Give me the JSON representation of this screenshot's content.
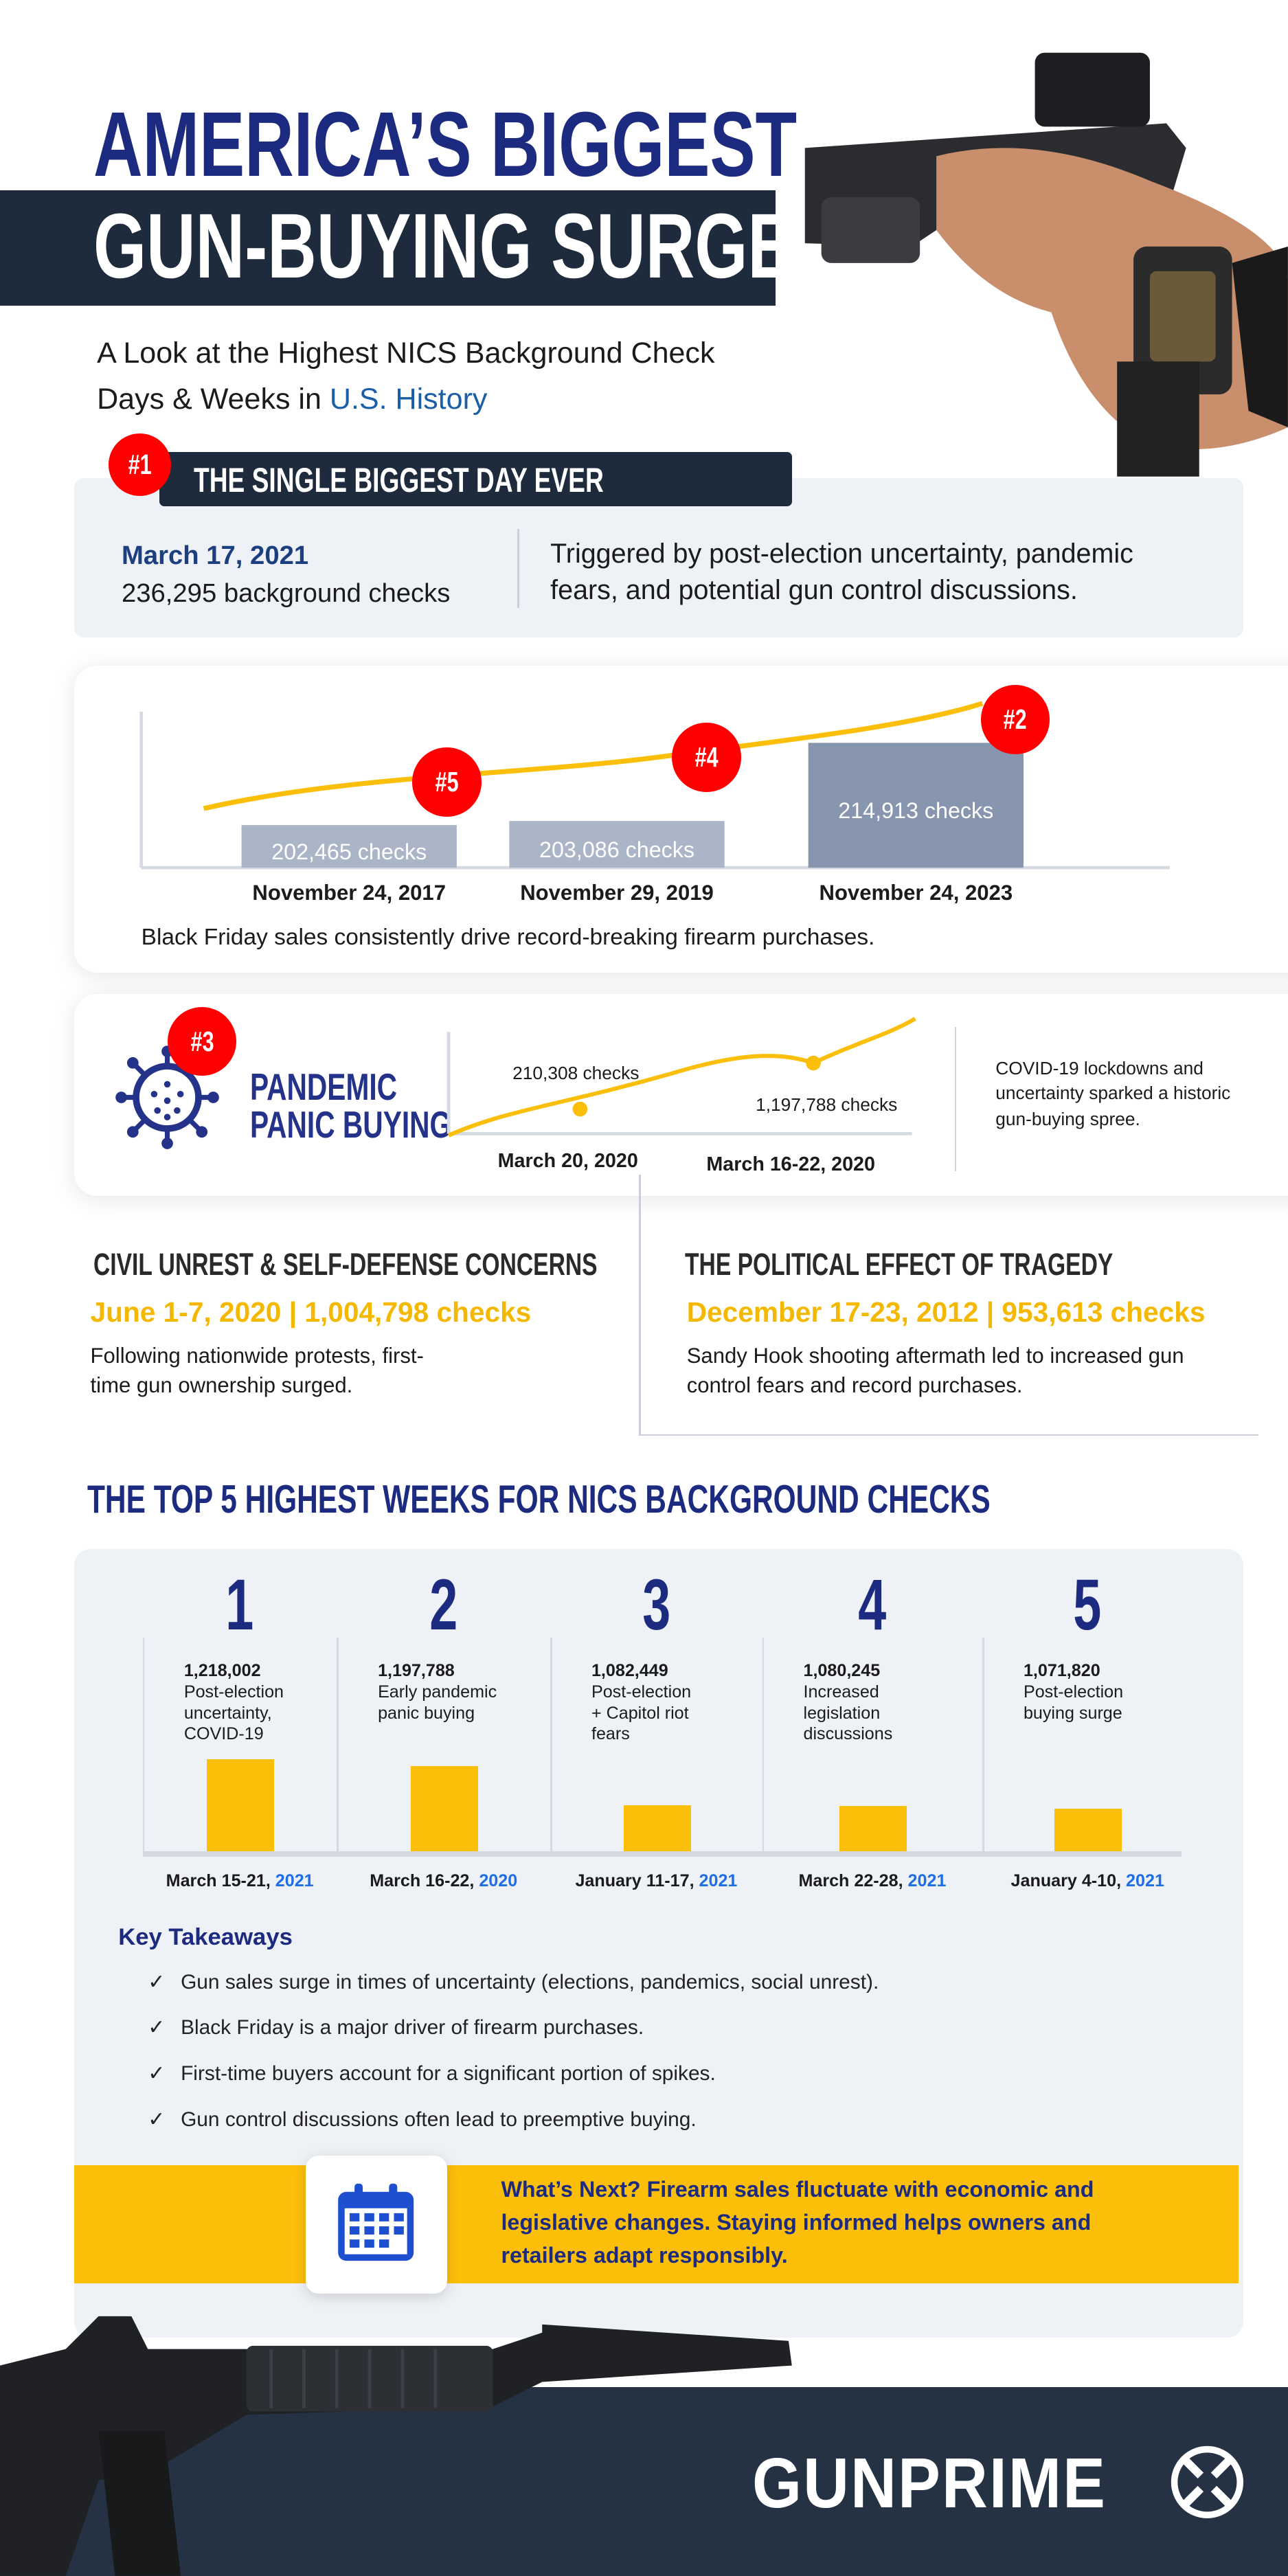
{
  "header": {
    "title_line1": "AMERICA’S BIGGEST",
    "title_line2": "GUN-BUYING SURGES",
    "subtitle_line1": "A Look at the Highest NICS Background Check",
    "subtitle_line2_prefix": "Days & Weeks in ",
    "subtitle_line2_highlight": "U.S. History"
  },
  "biggest_day": {
    "rank": "#1",
    "heading": "THE SINGLE BIGGEST DAY EVER",
    "date": "March 17, 2021",
    "checks": "236,295 background checks",
    "description_line1": "Triggered by post-election uncertainty, pandemic",
    "description_line2": "fears, and potential gun control discussions."
  },
  "black_friday": {
    "caption": "Black Friday sales consistently drive record-breaking firearm purchases."
  },
  "pandemic": {
    "rank": "#3",
    "title_line1": "PANDEMIC",
    "title_line2": "PANIC BUYING",
    "description_line1": "COVID-19 lockdowns and",
    "description_line2": "uncertainty sparked a historic",
    "description_line3": "gun-buying spree."
  },
  "civil_unrest": {
    "title": "CIVIL UNREST & SELF-DEFENSE CONCERNS",
    "highlight": "June 1-7, 2020 | 1,004,798 checks",
    "text_line1": "Following nationwide protests, first-",
    "text_line2": "time gun ownership surged."
  },
  "tragedy": {
    "title": "THE POLITICAL EFFECT OF TRAGEDY",
    "highlight": "December 17-23, 2012 | 953,613 checks",
    "text_line1": "Sandy Hook shooting aftermath led to increased gun",
    "text_line2": "control fears and record purchases."
  },
  "top5": {
    "title": "THE TOP 5 HIGHEST WEEKS FOR NICS BACKGROUND CHECKS"
  },
  "takeaways": {
    "title": "Key Takeaways",
    "check_icon": "✓",
    "items": [
      "Gun sales surge in times of uncertainty (elections, pandemics, social unrest).",
      "Black Friday is a major driver of firearm purchases.",
      "First-time buyers account for a significant portion of spikes.",
      "Gun control discussions often lead to preemptive buying."
    ]
  },
  "banner": {
    "icon": "calendar-icon",
    "line1": "What’s Next? Firearm sales fluctuate with economic and",
    "line2": "legislative changes. Staying informed helps owners and",
    "line3": "retailers adapt responsibly."
  },
  "footer": {
    "brand": "GUNPRIME"
  },
  "colors": {
    "navy": "#1c2b80",
    "dark_band": "#1e2b3d",
    "red_badge": "#ff0000",
    "yellow": "#fbbf0a",
    "blue_year": "#1e6ee8",
    "bar_light": "#aab5c8",
    "bar_dark": "#8796ae"
  },
  "chart_data": [
    {
      "type": "bar",
      "title": "",
      "categories": [
        "November 24, 2017",
        "November 29, 2019",
        "November 24, 2023"
      ],
      "values": [
        202465,
        203086,
        214913
      ],
      "data_labels": [
        "202,465  checks",
        "203,086 checks",
        "214,913 checks"
      ],
      "ranks": [
        "#5",
        "#4",
        "#2"
      ],
      "trend_line": true
    },
    {
      "type": "line",
      "categories": [
        "March 20, 2020",
        "March 16-22, 2020"
      ],
      "values": [
        210308,
        1197788
      ],
      "data_labels": [
        "210,308 checks",
        "1,197,788 checks"
      ]
    },
    {
      "type": "bar",
      "ranks": [
        "1",
        "2",
        "3",
        "4",
        "5"
      ],
      "values": [
        1218002,
        1197788,
        1082449,
        1080245,
        1071820
      ],
      "value_labels": [
        "1,218,002",
        "1,197,788",
        "1,082,449",
        "1,080,245",
        "1,071,820"
      ],
      "reasons": [
        [
          "Post-election",
          "uncertainty,",
          "COVID-19"
        ],
        [
          "Early pandemic",
          "panic buying"
        ],
        [
          "Post-election",
          "+ Capitol riot",
          "fears"
        ],
        [
          "Increased",
          "legislation",
          "discussions"
        ],
        [
          "Post-election",
          "buying surge"
        ]
      ],
      "categories_prefix": [
        "March 15-21, ",
        "March 16-22, ",
        "January 11-17, ",
        "March 22-28, ",
        "January 4-10, "
      ],
      "categories_year": [
        "2021",
        "2020",
        "2021",
        "2021",
        "2021"
      ]
    }
  ]
}
